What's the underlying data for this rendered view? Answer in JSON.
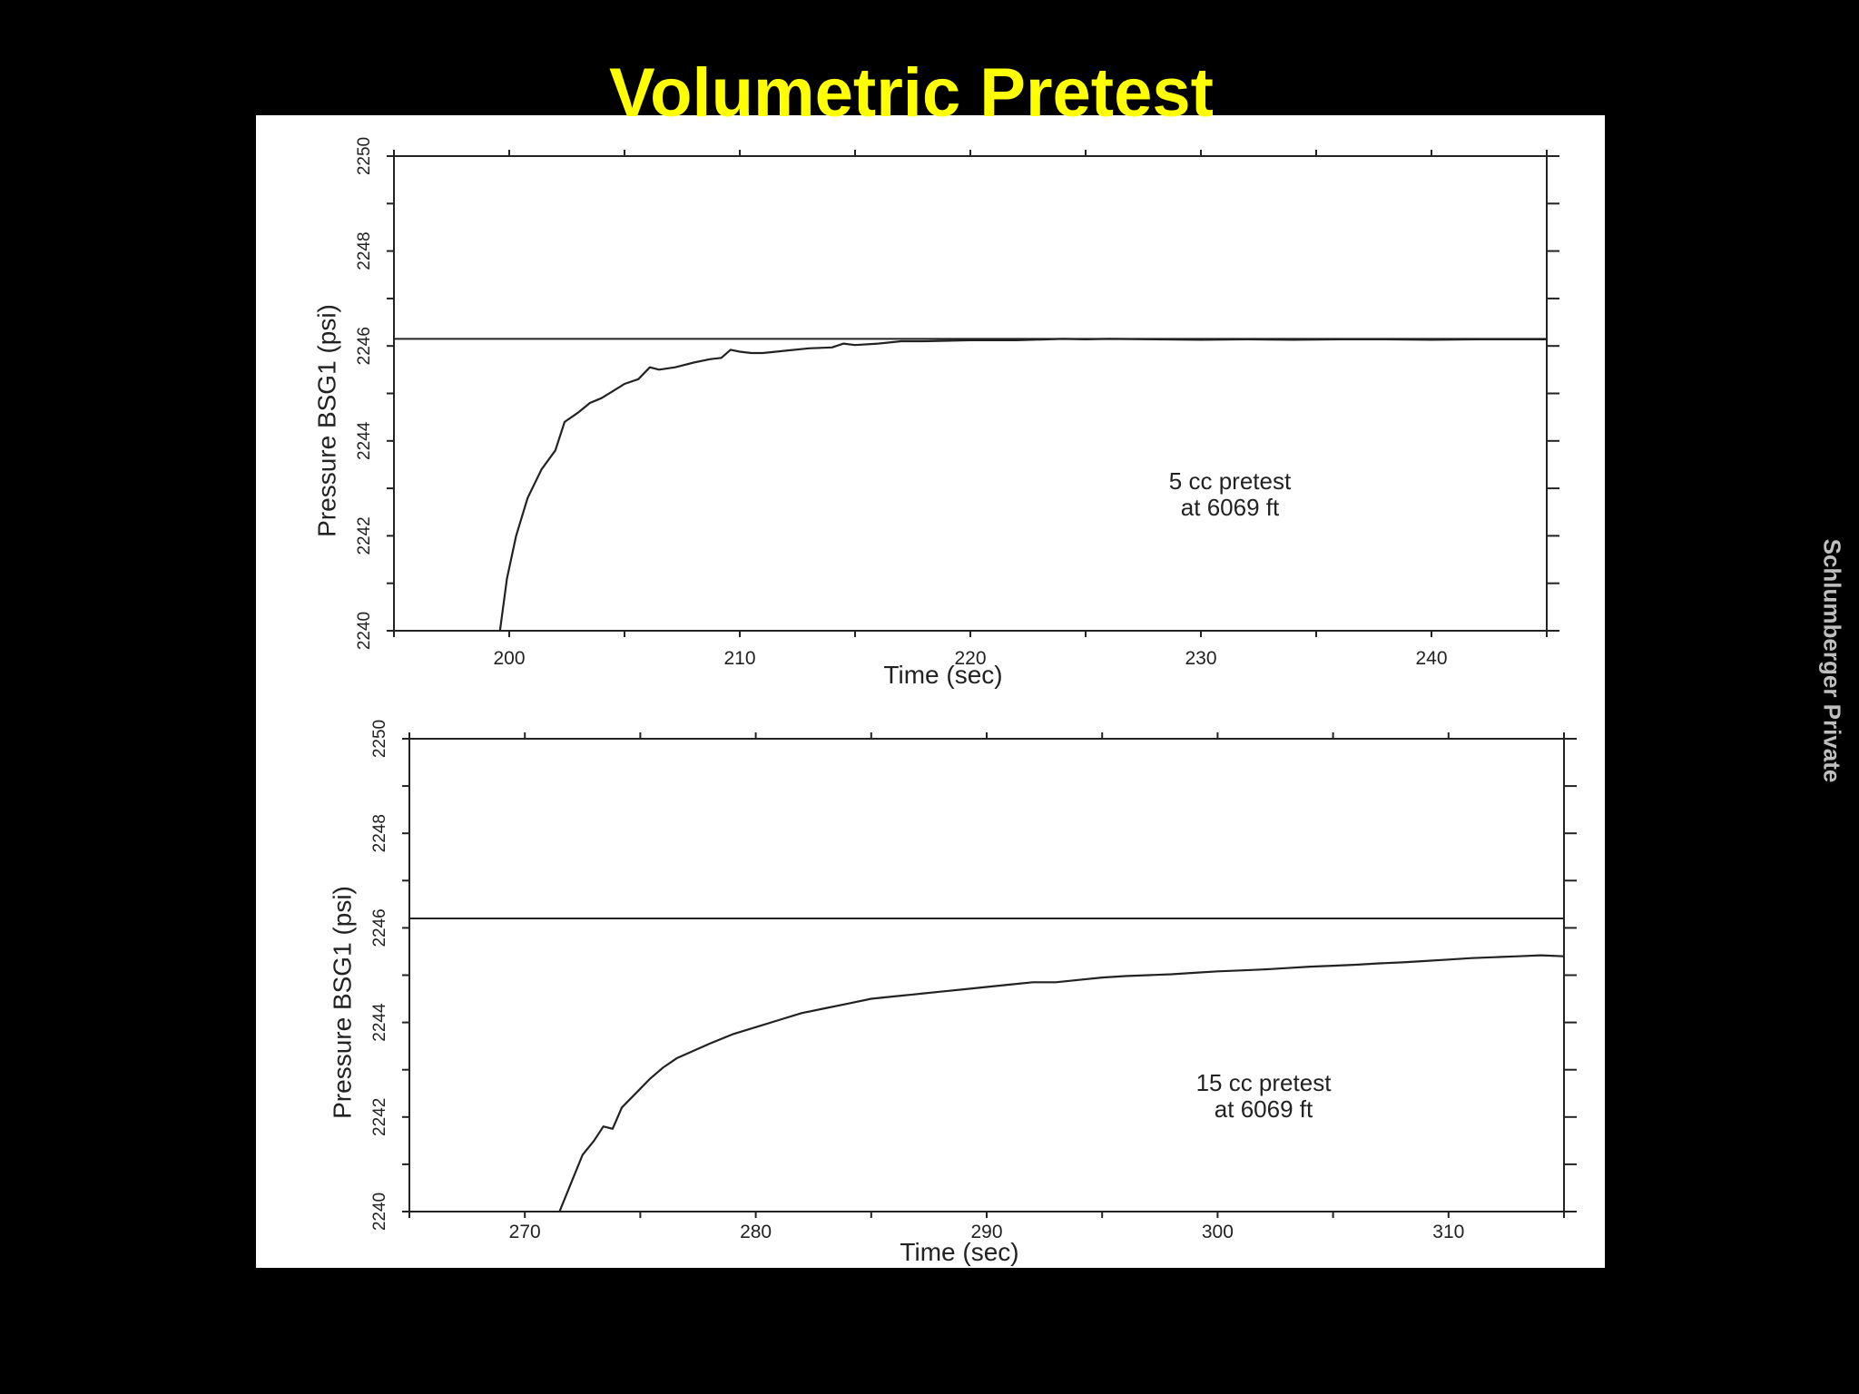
{
  "title": "Volumetric Pretest",
  "side_label": "Schlumberger Private",
  "colors": {
    "background": "#000000",
    "title": "#ffff00",
    "paper": "#ffffff",
    "ink": "#222222",
    "side_label": "#bfbfbf"
  },
  "chart_data": [
    {
      "type": "line",
      "xlabel": "Time (sec)",
      "ylabel": "Pressure BSG1 (psi)",
      "xlim": [
        195,
        245
      ],
      "ylim": [
        2240,
        2250
      ],
      "xticks": [
        200,
        210,
        220,
        230,
        240
      ],
      "yticks": [
        2240,
        2242,
        2244,
        2246,
        2248,
        2250
      ],
      "annotation": [
        "5 cc pretest",
        "at  6069 ft"
      ],
      "reference_line": 2246.15,
      "grid": false,
      "series": [
        {
          "x": [
            199.6,
            199.9,
            200.3,
            200.8,
            201.4,
            202.0,
            202.4,
            203.0,
            203.5,
            204.0,
            204.5,
            205.0,
            205.6,
            206.1,
            206.5,
            207.2,
            208.0,
            208.7,
            209.2,
            209.6,
            210.0,
            210.5,
            211.0,
            212.0,
            213.0,
            214.0,
            214.5,
            215.0,
            216.0,
            217.0,
            218.0,
            220.0,
            222.0,
            224.0,
            225.0,
            226.0,
            228.0,
            230.0,
            232.0,
            234.0,
            236.0,
            238.0,
            240.0,
            242.0,
            244.0,
            245.0
          ],
          "y": [
            2240.0,
            2241.1,
            2242.0,
            2242.8,
            2243.4,
            2243.8,
            2244.4,
            2244.6,
            2244.8,
            2244.9,
            2245.05,
            2245.2,
            2245.3,
            2245.55,
            2245.5,
            2245.55,
            2245.65,
            2245.72,
            2245.75,
            2245.92,
            2245.88,
            2245.85,
            2245.85,
            2245.9,
            2245.95,
            2245.97,
            2246.05,
            2246.02,
            2246.05,
            2246.1,
            2246.1,
            2246.12,
            2246.12,
            2246.15,
            2246.14,
            2246.15,
            2246.14,
            2246.13,
            2246.14,
            2246.13,
            2246.14,
            2246.14,
            2246.13,
            2246.14,
            2246.14,
            2246.14
          ]
        }
      ]
    },
    {
      "type": "line",
      "xlabel": "Time (sec)",
      "ylabel": "Pressure BSG1 (psi)",
      "xlim": [
        265,
        315
      ],
      "ylim": [
        2240,
        2250
      ],
      "xticks": [
        270,
        280,
        290,
        300,
        310
      ],
      "yticks": [
        2240,
        2242,
        2244,
        2246,
        2248,
        2250
      ],
      "annotation": [
        "15 cc pretest",
        "at 6069 ft"
      ],
      "reference_line": 2246.2,
      "grid": false,
      "series": [
        {
          "x": [
            271.5,
            272.0,
            272.5,
            273.0,
            273.4,
            273.8,
            274.2,
            274.8,
            275.4,
            276.0,
            276.6,
            277.3,
            278.0,
            279.0,
            280.0,
            281.0,
            282.0,
            283.0,
            284.0,
            285.0,
            286.0,
            287.0,
            288.0,
            289.0,
            290.0,
            291.0,
            292.0,
            293.0,
            294.0,
            295.0,
            296.0,
            297.0,
            298.0,
            299.0,
            300.0,
            301.0,
            302.0,
            303.0,
            304.0,
            305.0,
            306.0,
            307.0,
            308.0,
            309.0,
            310.0,
            311.0,
            312.0,
            313.0,
            314.0,
            315.0
          ],
          "y": [
            2240.0,
            2240.6,
            2241.2,
            2241.5,
            2241.8,
            2241.75,
            2242.2,
            2242.5,
            2242.8,
            2243.05,
            2243.25,
            2243.4,
            2243.55,
            2243.75,
            2243.9,
            2244.05,
            2244.2,
            2244.3,
            2244.4,
            2244.5,
            2244.55,
            2244.6,
            2244.65,
            2244.7,
            2244.75,
            2244.8,
            2244.85,
            2244.85,
            2244.9,
            2244.95,
            2244.98,
            2245.0,
            2245.02,
            2245.05,
            2245.08,
            2245.1,
            2245.12,
            2245.15,
            2245.18,
            2245.2,
            2245.22,
            2245.25,
            2245.27,
            2245.3,
            2245.33,
            2245.36,
            2245.38,
            2245.4,
            2245.42,
            2245.4
          ]
        }
      ]
    }
  ]
}
